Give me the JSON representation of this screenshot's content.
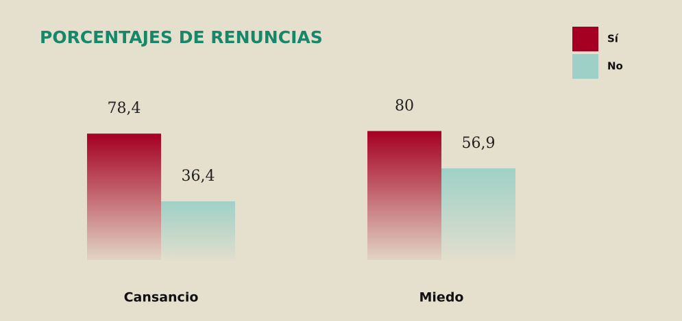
{
  "chart_data": {
    "type": "bar",
    "title": "PORCENTAJES DE RENUNCIAS",
    "categories": [
      "Cansancio",
      "Miedo"
    ],
    "series": [
      {
        "name": "Sí",
        "color": "#a50021",
        "values": [
          78.4,
          80
        ],
        "value_labels": [
          "78,4",
          "80"
        ]
      },
      {
        "name": "No",
        "color": "#9fd0c7",
        "values": [
          36.4,
          56.9
        ],
        "value_labels": [
          "36,4",
          "56,9"
        ]
      }
    ],
    "legend": "top-right"
  }
}
